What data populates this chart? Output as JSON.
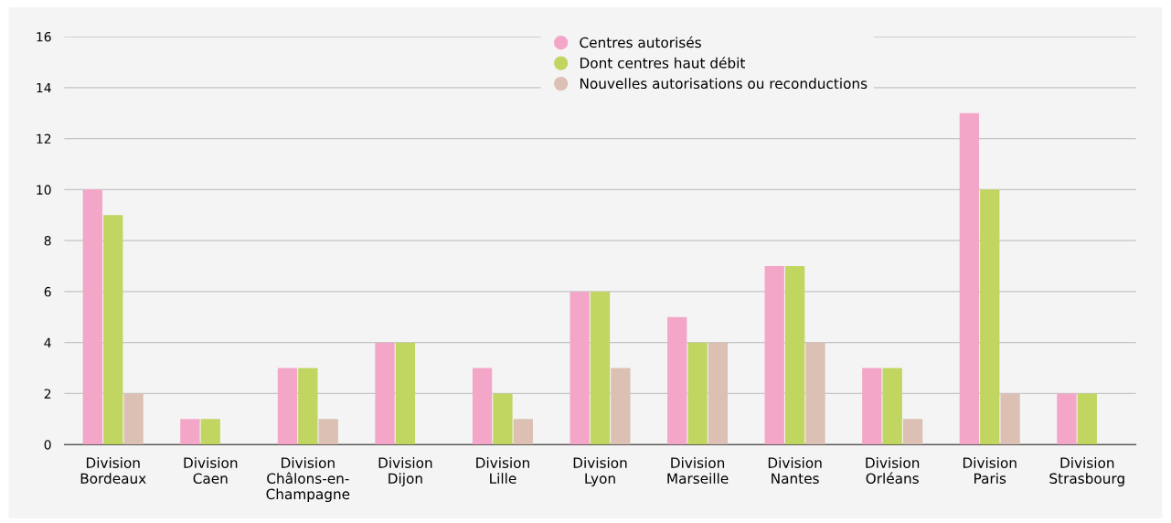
{
  "chart_data": {
    "type": "bar",
    "categories": [
      "Division\nBordeaux",
      "Division\nCaen",
      "Division\nChâlons-en-\nChampagne",
      "Division\nDijon",
      "Division\nLille",
      "Division\nLyon",
      "Division\nMarseille",
      "Division\nNantes",
      "Division\nOrléans",
      "Division\nParis",
      "Division\nStrasbourg"
    ],
    "series": [
      {
        "name": "Centres autorisés",
        "color": "#f4a6c8",
        "values": [
          10,
          1,
          3,
          4,
          3,
          6,
          5,
          7,
          3,
          13,
          2
        ]
      },
      {
        "name": "Dont centres haut débit",
        "color": "#c0d660",
        "values": [
          9,
          1,
          3,
          4,
          2,
          6,
          4,
          7,
          3,
          10,
          2
        ]
      },
      {
        "name": "Nouvelles autorisations ou reconductions",
        "color": "#dcc0b4",
        "values": [
          2,
          0,
          1,
          0,
          1,
          3,
          4,
          4,
          1,
          2,
          0
        ]
      }
    ],
    "ylim": [
      0,
      16
    ],
    "yticks": [
      0,
      2,
      4,
      6,
      8,
      10,
      12,
      14,
      16
    ],
    "grid": "y",
    "legend": "top",
    "marker": "circle"
  }
}
